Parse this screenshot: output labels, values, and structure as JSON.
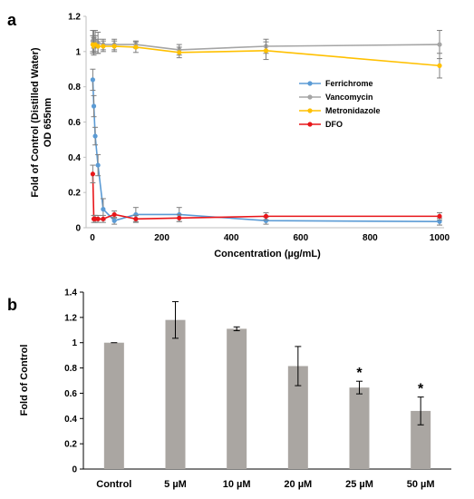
{
  "chart_data": [
    {
      "panel": "a",
      "type": "line",
      "xlabel": "Concentration (µg/mL)",
      "ylabel_line1": "Fold of Control (Distilled Water)",
      "ylabel_line2": "OD 655nm",
      "xlim": [
        0,
        1000
      ],
      "ylim": [
        0,
        1.2
      ],
      "xticks": [
        0,
        200,
        400,
        600,
        800,
        1000
      ],
      "yticks": [
        0,
        0.2,
        0.4,
        0.6,
        0.8,
        1,
        1.2
      ],
      "grid": false,
      "legend_position": "right",
      "series": [
        {
          "name": "Ferrichrome",
          "color": "#5b9bd5",
          "points": [
            {
              "x": 1,
              "y": 0.84,
              "err": 0.06
            },
            {
              "x": 4,
              "y": 0.69,
              "err": 0.06
            },
            {
              "x": 8,
              "y": 0.52,
              "err": 0.05
            },
            {
              "x": 16,
              "y": 0.355,
              "err": 0.06
            },
            {
              "x": 31,
              "y": 0.105,
              "err": 0.06
            },
            {
              "x": 63,
              "y": 0.04,
              "err": 0.02
            },
            {
              "x": 125,
              "y": 0.075,
              "err": 0.04
            },
            {
              "x": 250,
              "y": 0.075,
              "err": 0.04
            },
            {
              "x": 500,
              "y": 0.04,
              "err": 0.02
            },
            {
              "x": 1000,
              "y": 0.035,
              "err": 0.02
            }
          ]
        },
        {
          "name": "Vancomycin",
          "color": "#a5a5a5",
          "points": [
            {
              "x": 1,
              "y": 1.06,
              "err": 0.06
            },
            {
              "x": 4,
              "y": 1.07,
              "err": 0.05
            },
            {
              "x": 8,
              "y": 1.06,
              "err": 0.06
            },
            {
              "x": 16,
              "y": 1.05,
              "err": 0.06
            },
            {
              "x": 31,
              "y": 1.04,
              "err": 0.03
            },
            {
              "x": 63,
              "y": 1.04,
              "err": 0.03
            },
            {
              "x": 125,
              "y": 1.04,
              "err": 0.02
            },
            {
              "x": 250,
              "y": 1.01,
              "err": 0.03
            },
            {
              "x": 500,
              "y": 1.03,
              "err": 0.04
            },
            {
              "x": 1000,
              "y": 1.04,
              "err": 0.08
            }
          ]
        },
        {
          "name": "Metronidazole",
          "color": "#ffc000",
          "points": [
            {
              "x": 1,
              "y": 1.04,
              "err": 0.05
            },
            {
              "x": 4,
              "y": 1.03,
              "err": 0.05
            },
            {
              "x": 8,
              "y": 1.04,
              "err": 0.05
            },
            {
              "x": 16,
              "y": 1.03,
              "err": 0.04
            },
            {
              "x": 31,
              "y": 1.03,
              "err": 0.03
            },
            {
              "x": 63,
              "y": 1.03,
              "err": 0.03
            },
            {
              "x": 125,
              "y": 1.025,
              "err": 0.03
            },
            {
              "x": 250,
              "y": 0.995,
              "err": 0.03
            },
            {
              "x": 500,
              "y": 1.005,
              "err": 0.05
            },
            {
              "x": 1000,
              "y": 0.92,
              "err": 0.07
            }
          ]
        },
        {
          "name": "DFO",
          "color": "#e8161a",
          "points": [
            {
              "x": 1,
              "y": 0.305,
              "err": 0.05
            },
            {
              "x": 4,
              "y": 0.05,
              "err": 0.02
            },
            {
              "x": 8,
              "y": 0.05,
              "err": 0.02
            },
            {
              "x": 16,
              "y": 0.05,
              "err": 0.02
            },
            {
              "x": 31,
              "y": 0.05,
              "err": 0.02
            },
            {
              "x": 63,
              "y": 0.075,
              "err": 0.02
            },
            {
              "x": 125,
              "y": 0.05,
              "err": 0.02
            },
            {
              "x": 250,
              "y": 0.055,
              "err": 0.02
            },
            {
              "x": 500,
              "y": 0.065,
              "err": 0.02
            },
            {
              "x": 1000,
              "y": 0.065,
              "err": 0.02
            }
          ]
        }
      ]
    },
    {
      "panel": "b",
      "type": "bar",
      "ylabel": "Fold of Control",
      "ylim": [
        0,
        1.4
      ],
      "yticks": [
        "0",
        "0.2",
        "0.4",
        "0.6",
        "0.8",
        "1",
        "1.2",
        "1.4"
      ],
      "grid": false,
      "bar_color": "#aaa6a2",
      "categories": [
        "Control",
        "5 µM",
        "10 µM",
        "20 µM",
        "25 µM",
        "50 µM"
      ],
      "values": [
        1.0,
        1.18,
        1.11,
        0.815,
        0.645,
        0.46
      ],
      "errors": [
        0.0,
        0.145,
        0.015,
        0.155,
        0.05,
        0.11
      ],
      "annotations": [
        "",
        "",
        "",
        "",
        "*",
        "*"
      ]
    }
  ]
}
